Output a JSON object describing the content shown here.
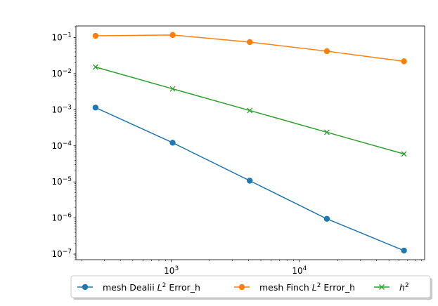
{
  "chart_data": {
    "type": "line",
    "title": "",
    "xlabel": "",
    "ylabel": "",
    "xscale": "log",
    "yscale": "log",
    "grid": false,
    "legend_placement": "below-center",
    "x": [
      256,
      1024,
      4096,
      16384,
      65536
    ],
    "xlim": [
      180,
      95000
    ],
    "ylim": [
      7e-08,
      0.21
    ],
    "x_ticks": [
      {
        "value": 1000,
        "base": "10",
        "exp": "3"
      },
      {
        "value": 10000,
        "base": "10",
        "exp": "4"
      }
    ],
    "y_ticks": [
      {
        "value": 1e-07,
        "base": "10",
        "exp": "−7"
      },
      {
        "value": 1e-06,
        "base": "10",
        "exp": "−6"
      },
      {
        "value": 1e-05,
        "base": "10",
        "exp": "−5"
      },
      {
        "value": 0.0001,
        "base": "10",
        "exp": "−4"
      },
      {
        "value": 0.001,
        "base": "10",
        "exp": "−3"
      },
      {
        "value": 0.01,
        "base": "10",
        "exp": "−2"
      },
      {
        "value": 0.1,
        "base": "10",
        "exp": "−1"
      }
    ],
    "series": [
      {
        "name_parts": [
          "mesh Dealii ",
          "L",
          "2",
          " Error_h"
        ],
        "color": "#1f77b4",
        "marker": "circle",
        "values": [
          0.00115,
          0.000122,
          1.08e-05,
          9.5e-07,
          1.25e-07
        ]
      },
      {
        "name_parts": [
          "mesh Finch ",
          "L",
          "2",
          " Error_h"
        ],
        "color": "#ff7f0e",
        "marker": "circle",
        "values": [
          0.112,
          0.118,
          0.075,
          0.042,
          0.022
        ]
      },
      {
        "name_parts": [
          "",
          "h",
          "2",
          ""
        ],
        "color": "#2ca02c",
        "marker": "x",
        "values": [
          0.0153,
          0.0038,
          0.000955,
          0.000238,
          5.95e-05
        ]
      }
    ]
  }
}
